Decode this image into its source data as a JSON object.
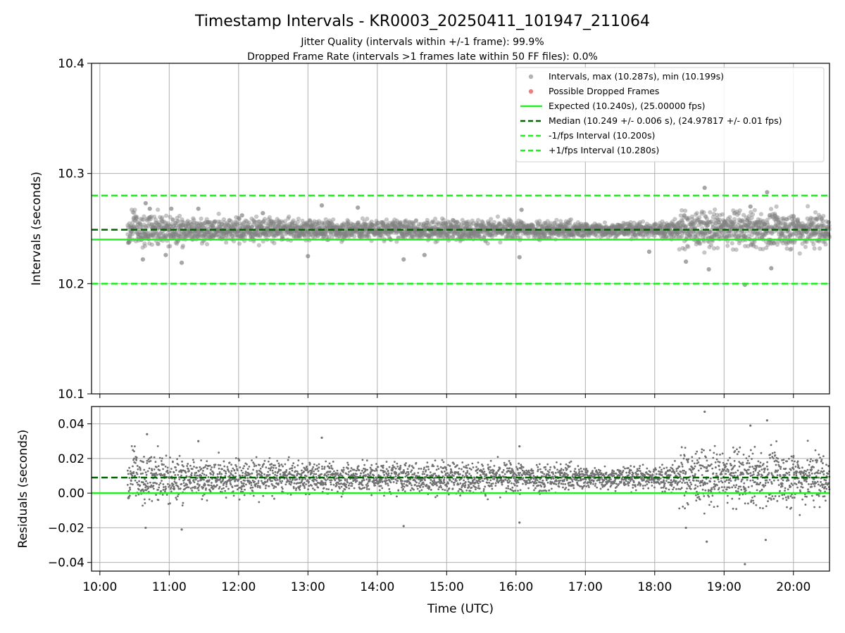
{
  "chart_data": [
    {
      "type": "scatter",
      "panel": "intervals",
      "title": "Timestamp Intervals - KR0003_20250411_101947_211064",
      "subtitle_lines": [
        "Jitter Quality (intervals within +/-1 frame): 99.9%",
        "Dropped Frame Rate (intervals >1 frames late within 50 FF files): 0.0%"
      ],
      "ylabel": "Intervals (seconds)",
      "ylim": [
        10.1,
        10.4
      ],
      "yticks": [
        "10.1",
        "10.2",
        "10.3",
        "10.4"
      ],
      "xlim_hours": [
        9.88,
        20.52
      ],
      "grid": true,
      "legend_position": "top-right",
      "series": [
        {
          "name": "Intervals, max (10.287s), min (10.199s)",
          "kind": "points",
          "color": "#808080",
          "x_range_hours": [
            10.4,
            20.52
          ],
          "max": 10.287,
          "min": 10.199,
          "typical": 10.249,
          "outliers": [
            {
              "t": 10.62,
              "v": 10.222
            },
            {
              "t": 10.66,
              "v": 10.273
            },
            {
              "t": 10.72,
              "v": 10.268
            },
            {
              "t": 10.95,
              "v": 10.226
            },
            {
              "t": 11.03,
              "v": 10.268
            },
            {
              "t": 11.18,
              "v": 10.219
            },
            {
              "t": 11.42,
              "v": 10.268
            },
            {
              "t": 12.05,
              "v": 10.262
            },
            {
              "t": 12.35,
              "v": 10.264
            },
            {
              "t": 13.0,
              "v": 10.225
            },
            {
              "t": 13.2,
              "v": 10.271
            },
            {
              "t": 13.72,
              "v": 10.269
            },
            {
              "t": 14.38,
              "v": 10.222
            },
            {
              "t": 14.68,
              "v": 10.226
            },
            {
              "t": 16.05,
              "v": 10.224
            },
            {
              "t": 16.08,
              "v": 10.267
            },
            {
              "t": 17.92,
              "v": 10.229
            },
            {
              "t": 18.45,
              "v": 10.22
            },
            {
              "t": 18.72,
              "v": 10.287
            },
            {
              "t": 18.78,
              "v": 10.213
            },
            {
              "t": 19.3,
              "v": 10.199
            },
            {
              "t": 19.38,
              "v": 10.27
            },
            {
              "t": 19.62,
              "v": 10.283
            },
            {
              "t": 19.68,
              "v": 10.214
            }
          ]
        },
        {
          "name": "Possible Dropped Frames",
          "kind": "points",
          "color": "#f07070",
          "values": []
        },
        {
          "name": "Expected (10.240s), (25.00000 fps)",
          "kind": "hline",
          "y": 10.24,
          "color": "#22ee22",
          "dash": false
        },
        {
          "name": "Median (10.249 +/- 0.006 s), (24.97817 +/- 0.01 fps)",
          "kind": "hline",
          "y": 10.249,
          "color": "#006400",
          "dash": true
        },
        {
          "name": "-1/fps Interval (10.200s)",
          "kind": "hline",
          "y": 10.2,
          "color": "#22ee22",
          "dash": true
        },
        {
          "name": "+1/fps Interval (10.280s)",
          "kind": "hline",
          "y": 10.28,
          "color": "#22ee22",
          "dash": true
        }
      ]
    },
    {
      "type": "scatter",
      "panel": "residuals",
      "xlabel": "Time (UTC)",
      "ylabel": "Residuals (seconds)",
      "ylim": [
        -0.045,
        0.05
      ],
      "yticks": [
        "−0.04",
        "−0.02",
        "0.00",
        "0.02",
        "0.04"
      ],
      "xticks": [
        "10:00",
        "11:00",
        "12:00",
        "13:00",
        "14:00",
        "15:00",
        "16:00",
        "17:00",
        "18:00",
        "19:00",
        "20:00"
      ],
      "grid": true,
      "series": [
        {
          "kind": "points",
          "color": "#707070",
          "typical": 0.009,
          "outliers": [
            {
              "t": 10.68,
              "v": 0.034
            },
            {
              "t": 10.66,
              "v": -0.02
            },
            {
              "t": 11.18,
              "v": -0.021
            },
            {
              "t": 11.42,
              "v": 0.03
            },
            {
              "t": 13.2,
              "v": 0.032
            },
            {
              "t": 14.38,
              "v": -0.019
            },
            {
              "t": 16.05,
              "v": -0.017
            },
            {
              "t": 16.05,
              "v": 0.027
            },
            {
              "t": 18.45,
              "v": -0.02
            },
            {
              "t": 18.72,
              "v": 0.047
            },
            {
              "t": 18.75,
              "v": -0.028
            },
            {
              "t": 19.3,
              "v": -0.041
            },
            {
              "t": 19.38,
              "v": 0.039
            },
            {
              "t": 19.62,
              "v": 0.042
            },
            {
              "t": 19.6,
              "v": -0.027
            }
          ]
        },
        {
          "kind": "hline",
          "y": 0.0,
          "color": "#22ee22",
          "dash": false
        },
        {
          "kind": "hline",
          "y": 0.009,
          "color": "#006400",
          "dash": true
        }
      ]
    }
  ]
}
